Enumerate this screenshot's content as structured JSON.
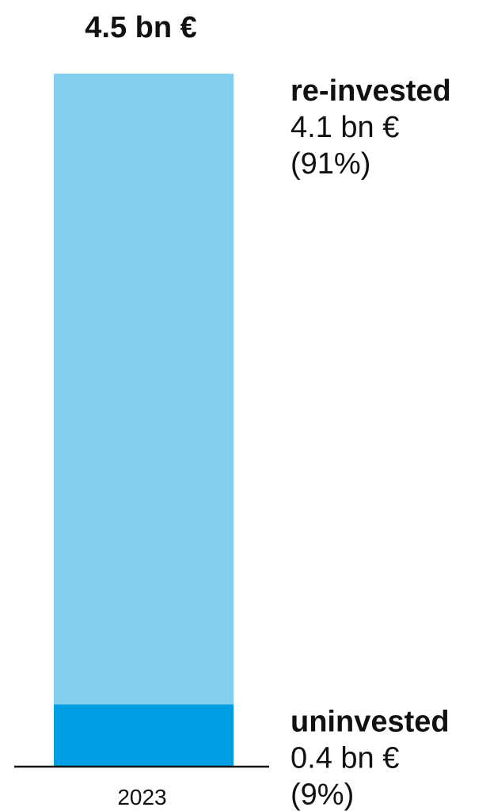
{
  "chart_data": {
    "type": "bar",
    "stacked": true,
    "categories": [
      "2023"
    ],
    "total_label": "4.5 bn €",
    "unit": "bn €",
    "ylim": [
      0,
      4.5
    ],
    "grid": false,
    "legend": "right",
    "series": [
      {
        "name": "uninvested",
        "values": [
          0.4
        ],
        "value_label": "0.4 bn €",
        "share_label": "(9%)",
        "color": "#009fe3"
      },
      {
        "name": "re-invested",
        "values": [
          4.1
        ],
        "value_label": "4.1 bn €",
        "share_label": "(91%)",
        "color": "#83cfed"
      }
    ],
    "axis_color": "#111111"
  }
}
